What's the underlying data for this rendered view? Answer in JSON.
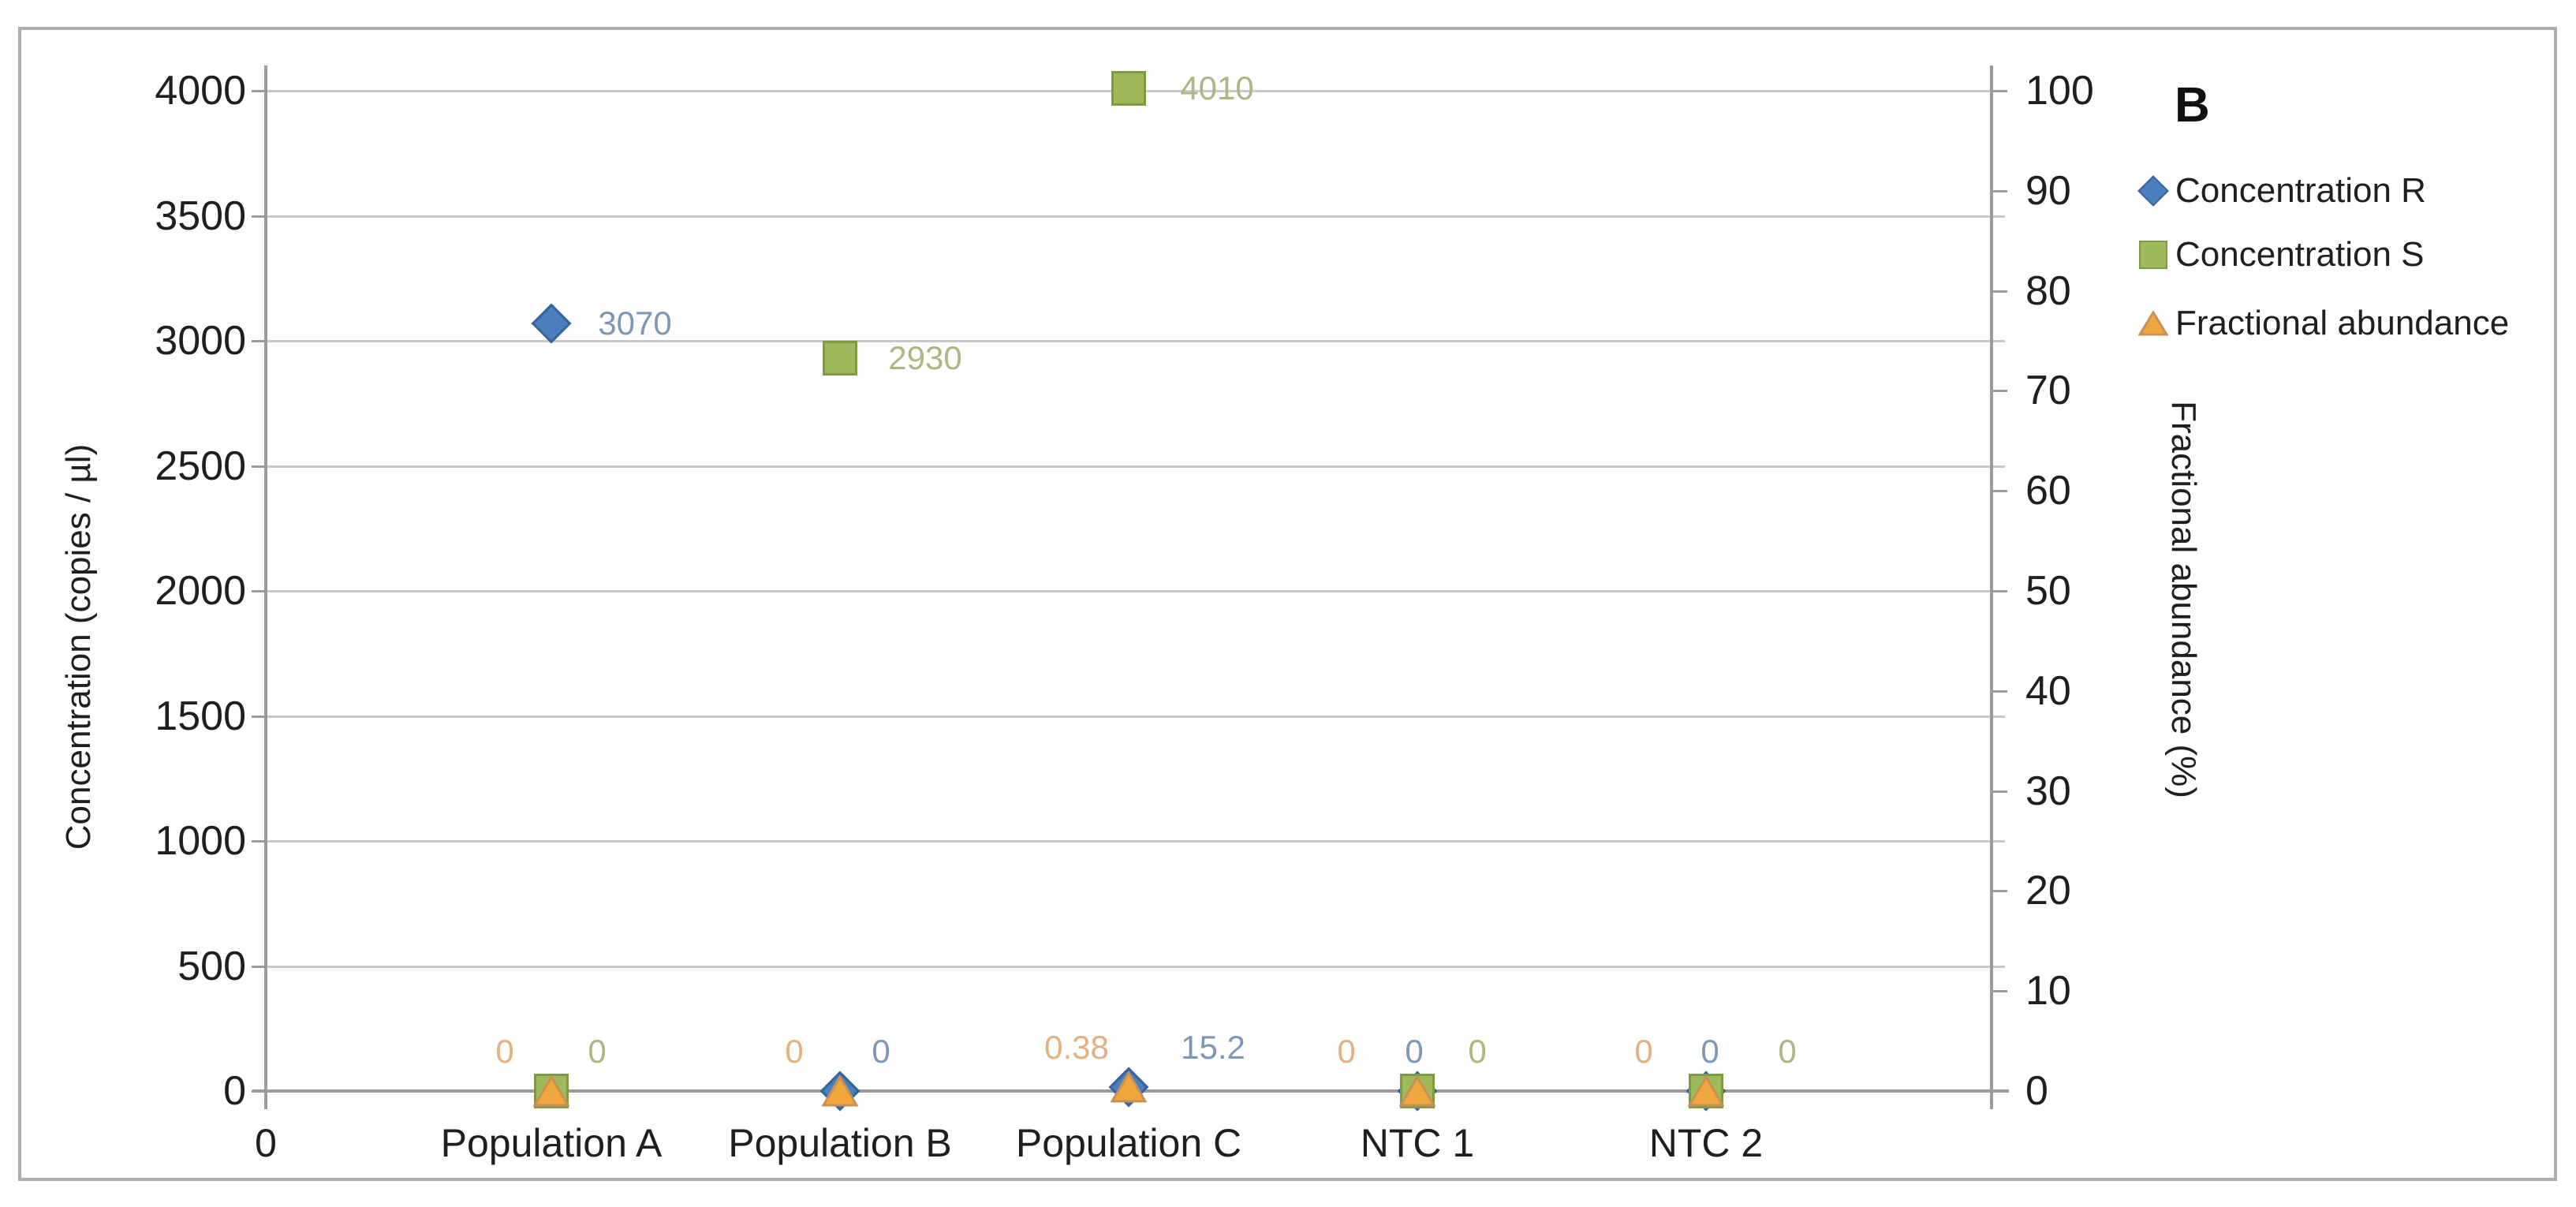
{
  "panel_label": "B",
  "legend": {
    "items": [
      {
        "label": "Concentration R",
        "marker": "diamond",
        "fill": "#4a7ebc",
        "stroke": "#35649e"
      },
      {
        "label": "Concentration S",
        "marker": "square",
        "fill": "#9cba59",
        "stroke": "#7e9b43"
      },
      {
        "label": "Fractional abundance",
        "marker": "triangle",
        "fill": "#f0a63f",
        "stroke": "#c89154"
      }
    ]
  },
  "chart_data": {
    "type": "scatter",
    "x_axis": {
      "origin_tick_label": "0",
      "categories": [
        "Population A",
        "Population B",
        "Population C",
        "NTC 1",
        "NTC 2"
      ]
    },
    "left_axis": {
      "title": "Concentration (copies / µl)",
      "range": [
        0,
        4000
      ],
      "tick_step": 500,
      "tick_labels": [
        "4000",
        "3500",
        "3000",
        "2500",
        "2000",
        "1500",
        "1000",
        "500",
        "0"
      ]
    },
    "right_axis": {
      "title": "Fractional abundance (%)",
      "range": [
        0,
        100
      ],
      "tick_step": 10,
      "tick_labels": [
        "100",
        "90",
        "80",
        "70",
        "60",
        "50",
        "40",
        "30",
        "20",
        "10",
        "0"
      ]
    },
    "series": [
      {
        "name": "Concentration R",
        "axis": "left",
        "marker": "diamond",
        "fill": "#4a7ebc",
        "stroke": "#35649e",
        "label_color": "#7e97b5",
        "points": [
          {
            "category": "Population A",
            "value": 3070,
            "label": "3070",
            "dx": 106,
            "dy": 0
          },
          {
            "category": "Population B",
            "value": 0,
            "label": "0",
            "dx": 52,
            "dy": -50
          },
          {
            "category": "Population C",
            "value": 15.2,
            "label": "15.2",
            "dx": 107,
            "dy": -50
          },
          {
            "category": "NTC 1",
            "value": 0,
            "label": "0",
            "dx": -4,
            "dy": -50
          },
          {
            "category": "NTC 2",
            "value": 0,
            "label": "0",
            "dx": 5,
            "dy": -50
          }
        ]
      },
      {
        "name": "Concentration S",
        "axis": "left",
        "marker": "square",
        "fill": "#9cba59",
        "stroke": "#7e9b43",
        "label_color": "#aab884",
        "points": [
          {
            "category": "Population A",
            "value": 0,
            "label": "0",
            "dx": 58,
            "dy": -50
          },
          {
            "category": "Population B",
            "value": 2930,
            "label": "2930",
            "dx": 108,
            "dy": 0
          },
          {
            "category": "Population C",
            "value": 4010,
            "label": "4010",
            "dx": 112,
            "dy": 0
          },
          {
            "category": "NTC 1",
            "value": 0,
            "label": "0",
            "dx": 76,
            "dy": -50
          },
          {
            "category": "NTC 2",
            "value": 0,
            "label": "0",
            "dx": 103,
            "dy": -50
          }
        ]
      },
      {
        "name": "Fractional abundance",
        "axis": "right",
        "marker": "triangle",
        "fill": "#f0a63f",
        "stroke": "#c89154",
        "label_color": "#e2b081",
        "points": [
          {
            "category": "Population A",
            "value": 0,
            "label": "0",
            "dx": -59,
            "dy": -50
          },
          {
            "category": "Population B",
            "value": 0,
            "label": "0",
            "dx": -58,
            "dy": -50
          },
          {
            "category": "Population C",
            "value": 0.38,
            "label": "0.38",
            "dx": -66,
            "dy": -50
          },
          {
            "category": "NTC 1",
            "value": 0,
            "label": "0",
            "dx": -90,
            "dy": -50
          },
          {
            "category": "NTC 2",
            "value": 0,
            "label": "0",
            "dx": -79,
            "dy": -50
          }
        ]
      }
    ]
  },
  "colors": {
    "gridline": "#c9c9c9",
    "axis": "#9b9b9b",
    "frame": "#adadad",
    "text": "#1f1f1f"
  }
}
